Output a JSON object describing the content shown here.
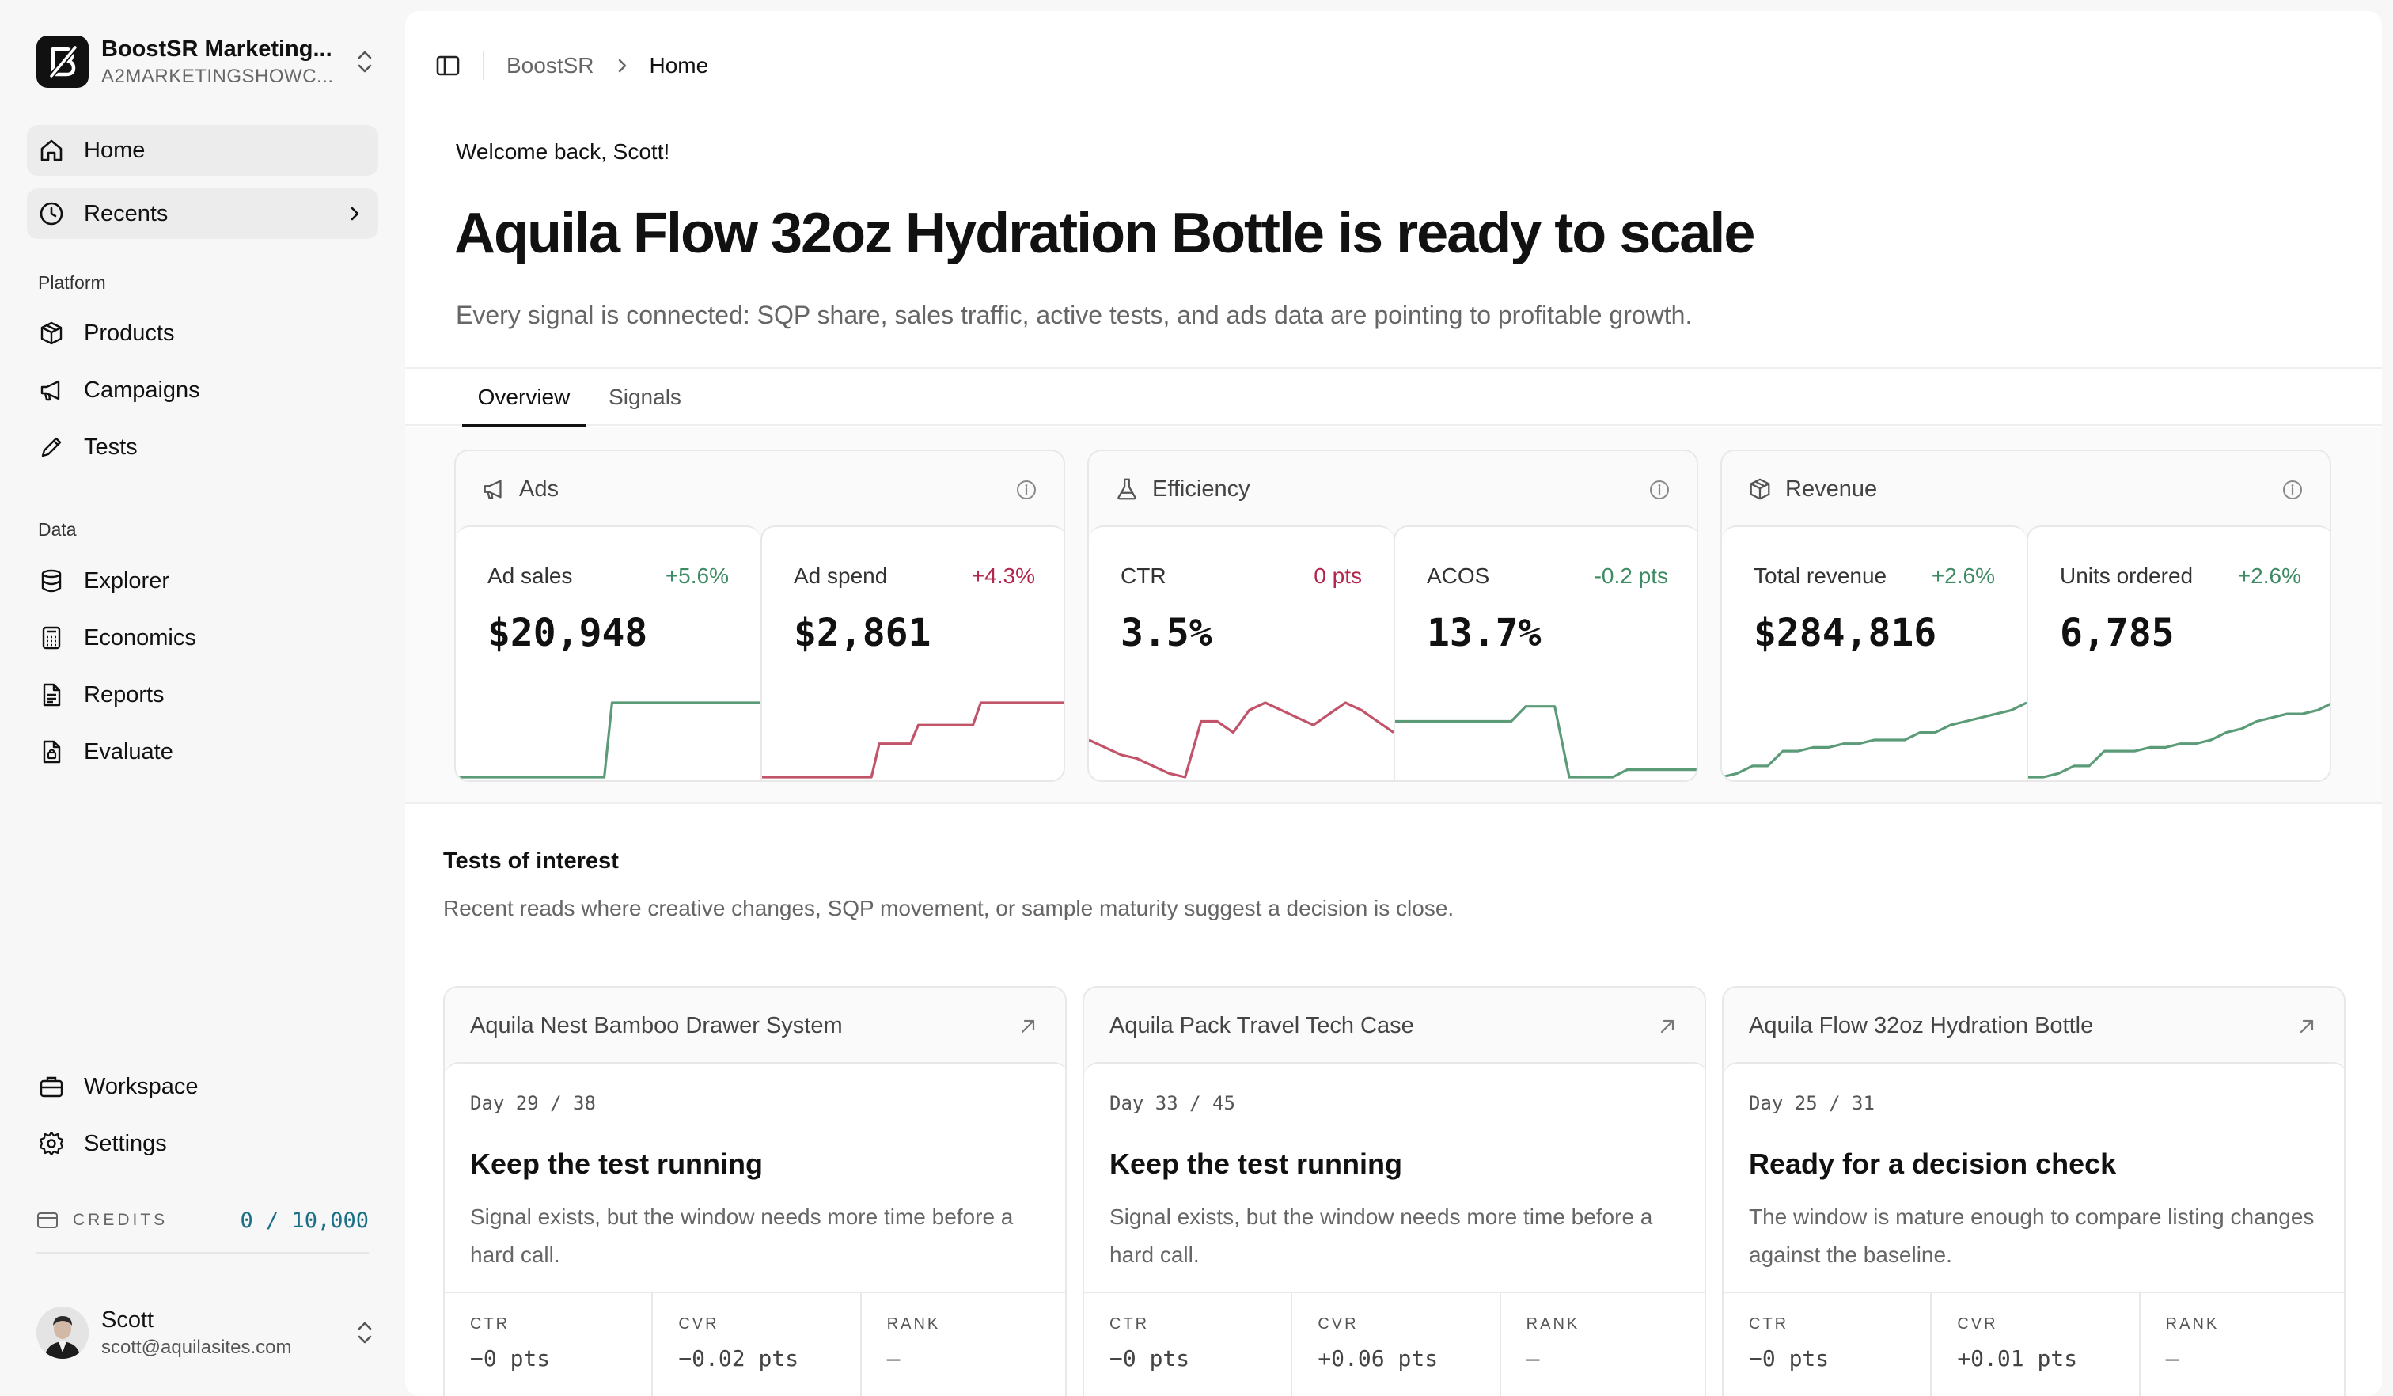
{
  "workspace": {
    "name": "BoostSR Marketing...",
    "sub": "A2MARKETINGSHOWC..."
  },
  "nav": {
    "home": "Home",
    "recents": "Recents",
    "platform_label": "Platform",
    "products": "Products",
    "campaigns": "Campaigns",
    "tests": "Tests",
    "data_label": "Data",
    "explorer": "Explorer",
    "economics": "Economics",
    "reports": "Reports",
    "evaluate": "Evaluate",
    "workspace": "Workspace",
    "settings": "Settings"
  },
  "credits": {
    "label": "CREDITS",
    "value": "0 / 10,000"
  },
  "user": {
    "name": "Scott",
    "email": "scott@aquilasites.com"
  },
  "breadcrumb": {
    "root": "BoostSR",
    "current": "Home"
  },
  "hero": {
    "welcome": "Welcome back, Scott!",
    "headline": "Aquila Flow 32oz Hydration Bottle is ready to scale",
    "subline": "Every signal is connected: SQP share, sales traffic, active tests, and ads data are pointing to profitable growth."
  },
  "tabs": {
    "overview": "Overview",
    "signals": "Signals"
  },
  "groups": [
    {
      "title": "Ads",
      "icon": "megaphone-icon",
      "metrics": [
        {
          "label": "Ad sales",
          "delta": "+5.6%",
          "trend": "positive",
          "value": "$20,948",
          "spark": [
            0,
            0,
            0,
            0,
            0,
            0,
            0,
            0,
            0,
            0,
            0,
            0,
            0,
            0,
            0,
            0,
            0,
            0,
            0,
            0,
            1,
            1,
            1,
            1,
            1,
            1,
            1,
            1,
            1,
            1,
            1,
            1,
            1,
            1,
            1,
            1,
            1,
            1,
            1,
            1
          ]
        },
        {
          "label": "Ad spend",
          "delta": "+4.3%",
          "trend": "negative",
          "value": "$2,861",
          "spark": [
            0,
            0,
            0,
            0,
            0,
            0,
            0,
            0,
            0,
            0,
            0,
            0,
            0,
            0,
            0,
            0.45,
            0.45,
            0.45,
            0.45,
            0.45,
            0.7,
            0.7,
            0.7,
            0.7,
            0.7,
            0.7,
            0.7,
            0.7,
            1,
            1,
            1,
            1,
            1,
            1,
            1,
            1,
            1,
            1,
            1,
            1
          ]
        }
      ]
    },
    {
      "title": "Efficiency",
      "icon": "flask-icon",
      "metrics": [
        {
          "label": "CTR",
          "delta": "0 pts",
          "trend": "negative",
          "value": "3.5%",
          "spark": [
            0.5,
            0.4,
            0.3,
            0.25,
            0.15,
            0.05,
            0,
            0.75,
            0.75,
            0.6,
            0.9,
            1,
            0.9,
            0.8,
            0.7,
            0.85,
            1,
            0.9,
            0.75,
            0.6
          ]
        },
        {
          "label": "ACOS",
          "delta": "-0.2 pts",
          "trend": "positive",
          "value": "13.7%",
          "spark": [
            0.75,
            0.75,
            0.75,
            0.75,
            0.75,
            0.75,
            0.75,
            0.75,
            0.75,
            0.95,
            0.95,
            0.95,
            0,
            0,
            0,
            0,
            0.1,
            0.1,
            0.1,
            0.1,
            0.1,
            0.1
          ]
        }
      ]
    },
    {
      "title": "Revenue",
      "icon": "box-icon",
      "metrics": [
        {
          "label": "Total revenue",
          "delta": "+2.6%",
          "trend": "positive",
          "value": "$284,816",
          "spark": [
            0,
            0.05,
            0.15,
            0.15,
            0.35,
            0.35,
            0.4,
            0.4,
            0.45,
            0.45,
            0.5,
            0.5,
            0.5,
            0.6,
            0.6,
            0.7,
            0.75,
            0.8,
            0.85,
            0.9,
            1
          ]
        },
        {
          "label": "Units ordered",
          "delta": "+2.6%",
          "trend": "positive",
          "value": "6,785",
          "spark": [
            0,
            0,
            0.05,
            0.15,
            0.15,
            0.35,
            0.35,
            0.35,
            0.4,
            0.4,
            0.45,
            0.45,
            0.5,
            0.6,
            0.65,
            0.75,
            0.8,
            0.85,
            0.85,
            0.9,
            1
          ]
        }
      ]
    }
  ],
  "tests_of_interest": {
    "title": "Tests of interest",
    "description": "Recent reads where creative changes, SQP movement, or sample maturity suggest a decision is close.",
    "stat_labels": {
      "ctr": "CTR",
      "cvr": "CVR",
      "rank": "RANK"
    },
    "cards": [
      {
        "product": "Aquila Nest Bamboo Drawer System",
        "day": "Day 29 / 38",
        "verdict": "Keep the test running",
        "note": "Signal exists, but the window needs more time before a hard call.",
        "ctr": "−0 pts",
        "ctr_trend": "neutral",
        "cvr": "−0.02 pts",
        "cvr_trend": "negative",
        "rank": "—"
      },
      {
        "product": "Aquila Pack Travel Tech Case",
        "day": "Day 33 / 45",
        "verdict": "Keep the test running",
        "note": "Signal exists, but the window needs more time before a hard call.",
        "ctr": "−0 pts",
        "ctr_trend": "neutral",
        "cvr": "+0.06 pts",
        "cvr_trend": "positive",
        "rank": "—"
      },
      {
        "product": "Aquila Flow 32oz Hydration Bottle",
        "day": "Day 25 / 31",
        "verdict": "Ready for a decision check",
        "note": "The window is mature enough to compare listing changes against the baseline.",
        "ctr": "−0 pts",
        "ctr_trend": "neutral",
        "cvr": "+0.01 pts",
        "cvr_trend": "positive",
        "rank": "—"
      }
    ]
  },
  "colors": {
    "positive": "#3e8a63",
    "negative": "#b3264e",
    "spark_positive": "#5b9b78",
    "spark_negative": "#c2546a",
    "credits": "#1b6f86"
  }
}
